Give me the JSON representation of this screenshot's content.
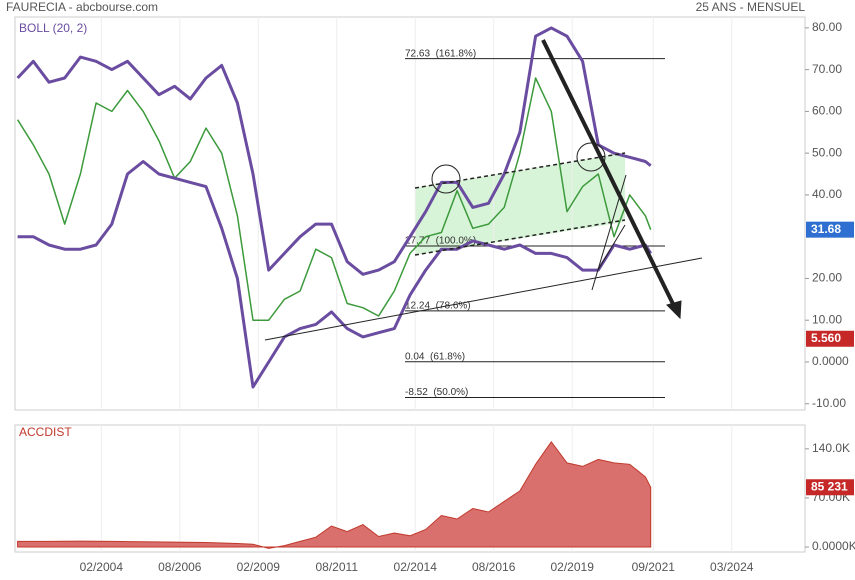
{
  "chart_data": [
    {
      "type": "line",
      "title": "FAURECIA - abcbourse.com",
      "subtitle": "25 ANS - MENSUEL",
      "indicator_label": "BOLL (20, 2)",
      "x": [
        "06/2001",
        "12/2001",
        "06/2002",
        "12/2002",
        "06/2003",
        "12/2003",
        "06/2004",
        "12/2004",
        "06/2005",
        "12/2005",
        "06/2006",
        "12/2006",
        "06/2007",
        "12/2007",
        "06/2008",
        "12/2008",
        "06/2009",
        "12/2009",
        "06/2010",
        "12/2010",
        "06/2011",
        "12/2011",
        "06/2012",
        "12/2012",
        "06/2013",
        "12/2013",
        "06/2014",
        "12/2014",
        "06/2015",
        "12/2015",
        "06/2016",
        "12/2016",
        "06/2017",
        "12/2017",
        "06/2018",
        "12/2018",
        "06/2019",
        "12/2019",
        "06/2020",
        "12/2020",
        "06/2021",
        "08/2021"
      ],
      "series": [
        {
          "color": "#3c9a3c",
          "values": [
            58,
            52,
            45,
            33,
            45,
            62,
            60,
            65,
            60,
            53,
            44,
            48,
            56,
            50,
            35,
            10,
            10,
            15,
            17,
            27,
            25,
            14,
            13,
            11,
            17,
            26,
            30,
            31,
            41,
            32,
            33,
            37,
            50,
            68,
            60,
            36,
            42,
            45,
            30,
            40,
            35,
            31.68
          ]
        },
        {
          "color": "#6a4ca0",
          "values": [
            68,
            72,
            67,
            68,
            73,
            72,
            70,
            72,
            68,
            64,
            66,
            63,
            68,
            71,
            62,
            45,
            22,
            26,
            30,
            33,
            33,
            24,
            21,
            22,
            24,
            30,
            36,
            43,
            43,
            37,
            38,
            45,
            55,
            78,
            80,
            78,
            72,
            52,
            50,
            49,
            48,
            47
          ]
        },
        {
          "color": "#6a4ca0",
          "values": [
            30,
            30,
            28,
            27,
            27,
            28,
            33,
            45,
            48,
            45,
            44,
            43,
            42,
            32,
            20,
            -6,
            0,
            6,
            8,
            9,
            12,
            8,
            6,
            7,
            8,
            16,
            22,
            27,
            27,
            29,
            28,
            27,
            28,
            26,
            26,
            25,
            22,
            22,
            28,
            27,
            28,
            26
          ]
        }
      ],
      "xlim": [
        "05/2001",
        "07/2026"
      ],
      "xticks": [
        "02/2004",
        "08/2006",
        "02/2009",
        "08/2011",
        "02/2014",
        "08/2016",
        "02/2019",
        "09/2021",
        "03/2024"
      ],
      "ylim": [
        -11.5,
        82.6
      ],
      "yticks": [
        {
          "value": 80,
          "label": "80.00"
        },
        {
          "value": 70,
          "label": "70.00"
        },
        {
          "value": 60,
          "label": "60.00"
        },
        {
          "value": 50,
          "label": "50.00"
        },
        {
          "value": 40,
          "label": "40.00"
        },
        {
          "value": 20,
          "label": "20.00"
        },
        {
          "value": 10,
          "label": "10.00"
        },
        {
          "value": 0,
          "label": "0.0000"
        },
        {
          "value": -10,
          "label": "-10.00"
        }
      ],
      "last_value": {
        "value": 31.68,
        "label": "31.68"
      },
      "marker": {
        "value": 5.56,
        "label": "5.560"
      },
      "fib_levels": [
        {
          "value": 72.63,
          "label": "72.63  (161.8%)"
        },
        {
          "value": 27.77,
          "label": "27.77  (100.0%)"
        },
        {
          "value": 12.24,
          "label": "12.24  (78.6%)"
        },
        {
          "value": 0.04,
          "label": "0.04  (61.8%)"
        },
        {
          "value": -8.52,
          "label": "-8.52  (50.0%)"
        }
      ]
    },
    {
      "type": "area",
      "title": "ACCDIST",
      "color": "#d9706e",
      "x": [
        "06/2001",
        "06/2002",
        "06/2003",
        "06/2004",
        "06/2005",
        "06/2006",
        "06/2007",
        "06/2008",
        "12/2008",
        "06/2009",
        "12/2009",
        "06/2010",
        "12/2010",
        "06/2011",
        "12/2011",
        "06/2012",
        "12/2012",
        "06/2013",
        "12/2013",
        "06/2014",
        "12/2014",
        "06/2015",
        "12/2015",
        "06/2016",
        "12/2016",
        "06/2017",
        "12/2017",
        "06/2018",
        "12/2018",
        "06/2019",
        "12/2019",
        "06/2020",
        "12/2020",
        "06/2021",
        "08/2021"
      ],
      "values": [
        8000,
        8000,
        8500,
        8000,
        7500,
        7000,
        6500,
        5000,
        4000,
        -2000,
        2000,
        8000,
        14000,
        30000,
        22000,
        32000,
        15000,
        20000,
        16000,
        25000,
        45000,
        40000,
        55000,
        50000,
        65000,
        80000,
        118000,
        150000,
        120000,
        115000,
        125000,
        120000,
        118000,
        100000,
        85231
      ],
      "ylim": [
        -7100,
        174000
      ],
      "yticks": [
        {
          "value": 140000,
          "label": "140.0K"
        },
        {
          "value": 70000,
          "label": "70.00K"
        },
        {
          "value": 0,
          "label": "0.0000K"
        }
      ],
      "last_value": {
        "value": 85231,
        "label": "85 231"
      }
    }
  ]
}
